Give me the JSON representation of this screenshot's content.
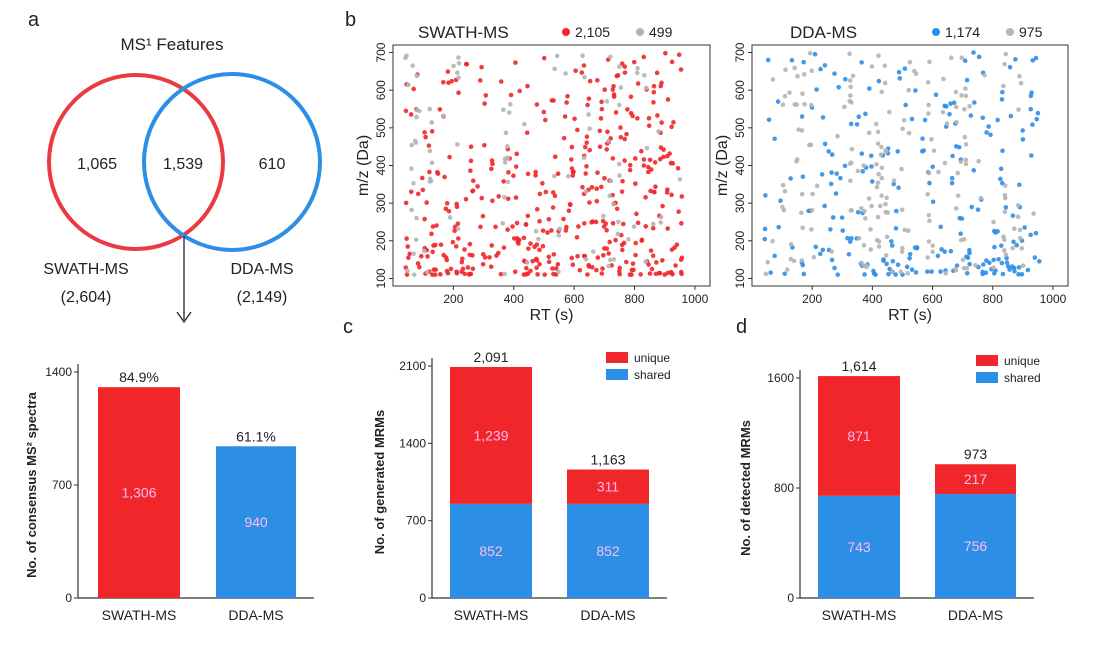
{
  "colors": {
    "red": "#f0262a",
    "blue": "#2d8ee6",
    "gray": "#b4b4b4",
    "axis": "#333333"
  },
  "panel_letters": {
    "a": "a",
    "b": "b",
    "c": "c",
    "d": "d"
  },
  "venn": {
    "title": "MS¹ Features",
    "left_only": "1,065",
    "overlap": "1,539",
    "right_only": "610",
    "left_label": "SWATH-MS",
    "left_total": "(2,604)",
    "right_label": "DDA-MS",
    "right_total": "(2,149)"
  },
  "chart_data": [
    {
      "id": "a",
      "type": "bar",
      "ylabel": "No. of consensus MS² spectra",
      "categories": [
        "SWATH-MS",
        "DDA-MS"
      ],
      "values": [
        1306,
        940
      ],
      "value_labels": [
        "1,306",
        "940"
      ],
      "top_labels": [
        "84.9%",
        "61.1%"
      ],
      "ylim": [
        0,
        1400
      ],
      "yticks": [
        "0",
        "700",
        "1400"
      ],
      "colors": [
        "#f0262a",
        "#2d8ee6"
      ]
    },
    {
      "id": "b1",
      "type": "scatter",
      "title": "SWATH-MS",
      "xlabel": "RT (s)",
      "ylabel": "m/z (Da)",
      "xlim": [
        0,
        1050
      ],
      "ylim": [
        80,
        720
      ],
      "xticks": [
        "200",
        "400",
        "600",
        "800",
        "1000"
      ],
      "yticks": [
        "100",
        "200",
        "300",
        "400",
        "500",
        "600",
        "700"
      ],
      "series": [
        {
          "name": "2,105",
          "color": "#f0262a",
          "count": 2105
        },
        {
          "name": "499",
          "color": "#b4b4b4",
          "count": 499
        }
      ]
    },
    {
      "id": "b2",
      "type": "scatter",
      "title": "DDA-MS",
      "xlabel": "RT (s)",
      "ylabel": "m/z (Da)",
      "xlim": [
        0,
        1050
      ],
      "ylim": [
        80,
        720
      ],
      "xticks": [
        "200",
        "400",
        "600",
        "800",
        "1000"
      ],
      "yticks": [
        "100",
        "200",
        "300",
        "400",
        "500",
        "600",
        "700"
      ],
      "series": [
        {
          "name": "1,174",
          "color": "#2d8ee6",
          "count": 1174
        },
        {
          "name": "975",
          "color": "#b4b4b4",
          "count": 975
        }
      ]
    },
    {
      "id": "c",
      "type": "bar",
      "stacked": true,
      "ylabel": "No. of generated MRMs",
      "categories": [
        "SWATH-MS",
        "DDA-MS"
      ],
      "ylim": [
        0,
        2100
      ],
      "yticks": [
        "0",
        "700",
        "1400",
        "2100"
      ],
      "legend": "top-right",
      "series": [
        {
          "name": "shared",
          "values": [
            852,
            852
          ],
          "labels": [
            "852",
            "852"
          ],
          "color": "#2d8ee6"
        },
        {
          "name": "unique",
          "values": [
            1239,
            311
          ],
          "labels": [
            "1,239",
            "311"
          ],
          "color": "#f0262a"
        }
      ],
      "totals": [
        "2,091",
        "1,163"
      ]
    },
    {
      "id": "d",
      "type": "bar",
      "stacked": true,
      "ylabel": "No. of detected MRMs",
      "categories": [
        "SWATH-MS",
        "DDA-MS"
      ],
      "ylim": [
        0,
        1600
      ],
      "yticks": [
        "0",
        "800",
        "1600"
      ],
      "legend": "top-right",
      "series": [
        {
          "name": "shared",
          "values": [
            743,
            756
          ],
          "labels": [
            "743",
            "756"
          ],
          "color": "#2d8ee6"
        },
        {
          "name": "unique",
          "values": [
            871,
            217
          ],
          "labels": [
            "871",
            "217"
          ],
          "color": "#f0262a"
        }
      ],
      "totals": [
        "1,614",
        "973"
      ]
    }
  ]
}
